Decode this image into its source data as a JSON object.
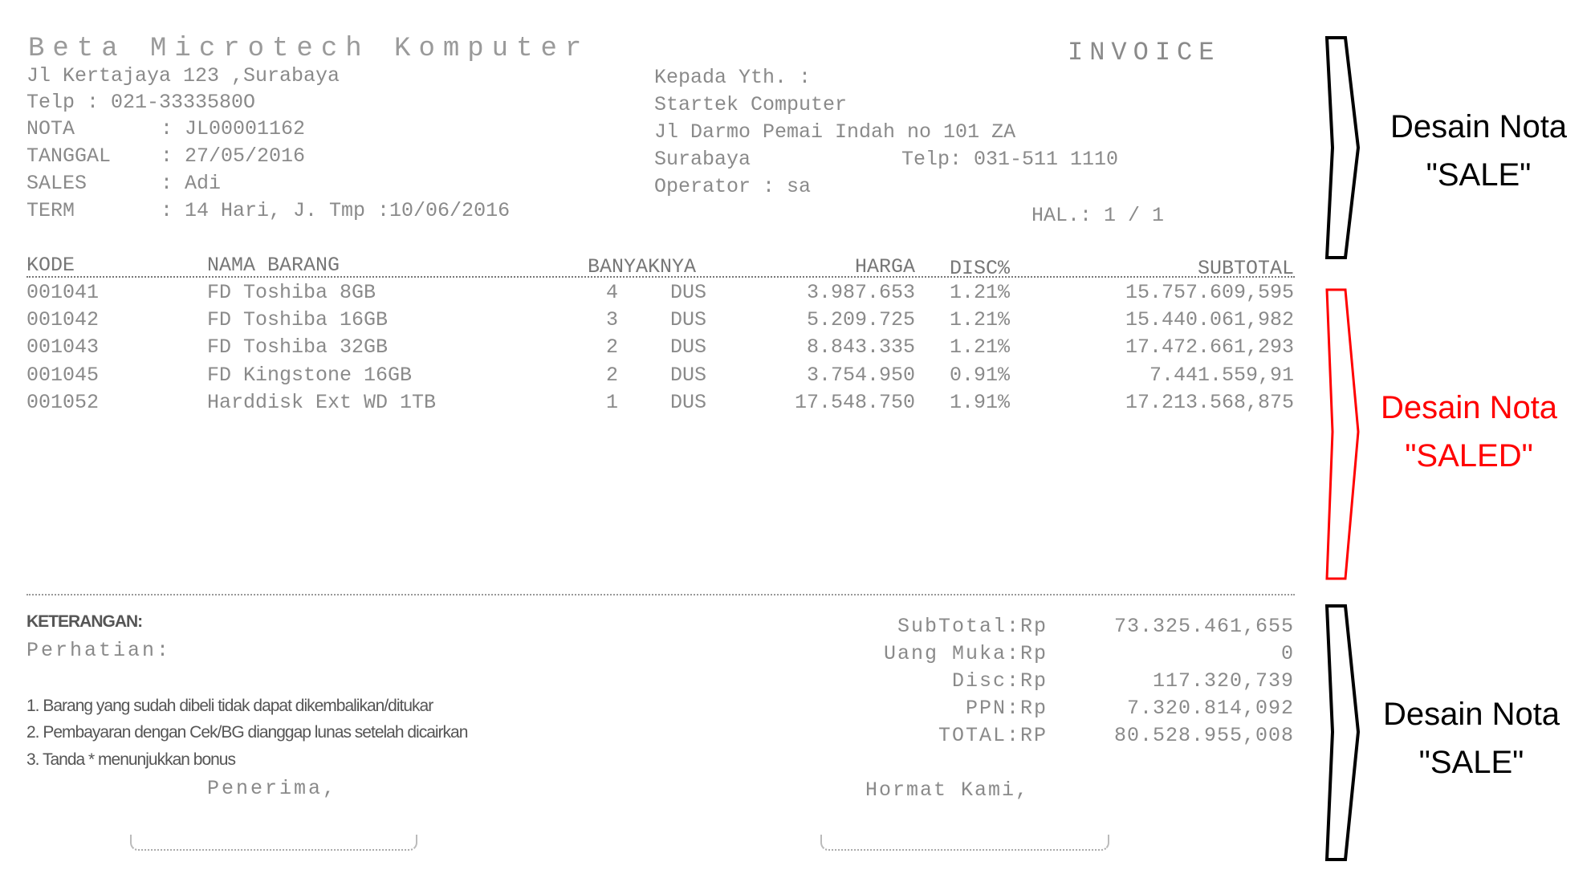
{
  "invoice": {
    "company_name": "Beta Microtech Komputer",
    "doc_title": "INVOICE",
    "address": "Jl Kertajaya 123 ,Surabaya",
    "phone": "Telp : 021-3333580O",
    "info": [
      {
        "label": "NOTA",
        "value": ": JL00001162"
      },
      {
        "label": "TANGGAL",
        "value": ": 27/05/2016"
      },
      {
        "label": "SALES",
        "value": ": Adi"
      },
      {
        "label": "TERM",
        "value": ": 14 Hari, J. Tmp :10/06/2016"
      }
    ],
    "recipient": {
      "heading": "Kepada Yth. :",
      "name": "Startek Computer",
      "address": "Jl Darmo Pemai Indah no 101 ZA",
      "city": "Surabaya",
      "phone": "Telp: 031-511 1110",
      "operator": "Operator : sa"
    },
    "page": "HAL.: 1 / 1",
    "table": {
      "headers": [
        "KODE",
        "NAMA BARANG",
        "BANYAKNYA",
        "HARGA",
        "DISC%",
        "SUBTOTAL"
      ],
      "rows": [
        {
          "kode": "001041",
          "nama": "FD Toshiba 8GB",
          "qty": "4",
          "unit": "DUS",
          "harga": "3.987.653",
          "disc": "1.21%",
          "subtotal": "15.757.609,595"
        },
        {
          "kode": "001042",
          "nama": "FD Toshiba 16GB",
          "qty": "3",
          "unit": "DUS",
          "harga": "5.209.725",
          "disc": "1.21%",
          "subtotal": "15.440.061,982"
        },
        {
          "kode": "001043",
          "nama": "FD Toshiba 32GB",
          "qty": "2",
          "unit": "DUS",
          "harga": "8.843.335",
          "disc": "1.21%",
          "subtotal": "17.472.661,293"
        },
        {
          "kode": "001045",
          "nama": "FD Kingstone 16GB",
          "qty": "2",
          "unit": "DUS",
          "harga": "3.754.950",
          "disc": "0.91%",
          "subtotal": "7.441.559,91"
        },
        {
          "kode": "001052",
          "nama": "Harddisk Ext WD 1TB",
          "qty": "1",
          "unit": "DUS",
          "harga": "17.548.750",
          "disc": "1.91%",
          "subtotal": "17.213.568,875"
        }
      ]
    },
    "keterangan": "KETERANGAN:",
    "perhatian": "Perhatian:",
    "notes": [
      "1. Barang yang sudah dibeli tidak dapat dikembalikan/ditukar",
      "2. Pembayaran dengan Cek/BG dianggap lunas setelah dicairkan",
      "3. Tanda * menunjukkan bonus"
    ],
    "totals": [
      {
        "label": "SubTotal:Rp",
        "value": "73.325.461,655"
      },
      {
        "label": "Uang Muka:Rp",
        "value": "0"
      },
      {
        "label": "Disc:Rp",
        "value": "117.320,739"
      },
      {
        "label": "PPN:Rp",
        "value": "7.320.814,092"
      },
      {
        "label": "TOTAL:RP",
        "value": "80.528.955,008"
      }
    ],
    "receiver_label": "Penerima,",
    "sender_label": "Hormat Kami,"
  },
  "annotations": [
    {
      "line1": "Desain Nota",
      "line2": "\"SALE\"",
      "color": "#000000"
    },
    {
      "line1": "Desain Nota",
      "line2": "\"SALED\"",
      "color": "#ff0000"
    },
    {
      "line1": "Desain Nota",
      "line2": "\"SALE\"",
      "color": "#000000"
    }
  ]
}
